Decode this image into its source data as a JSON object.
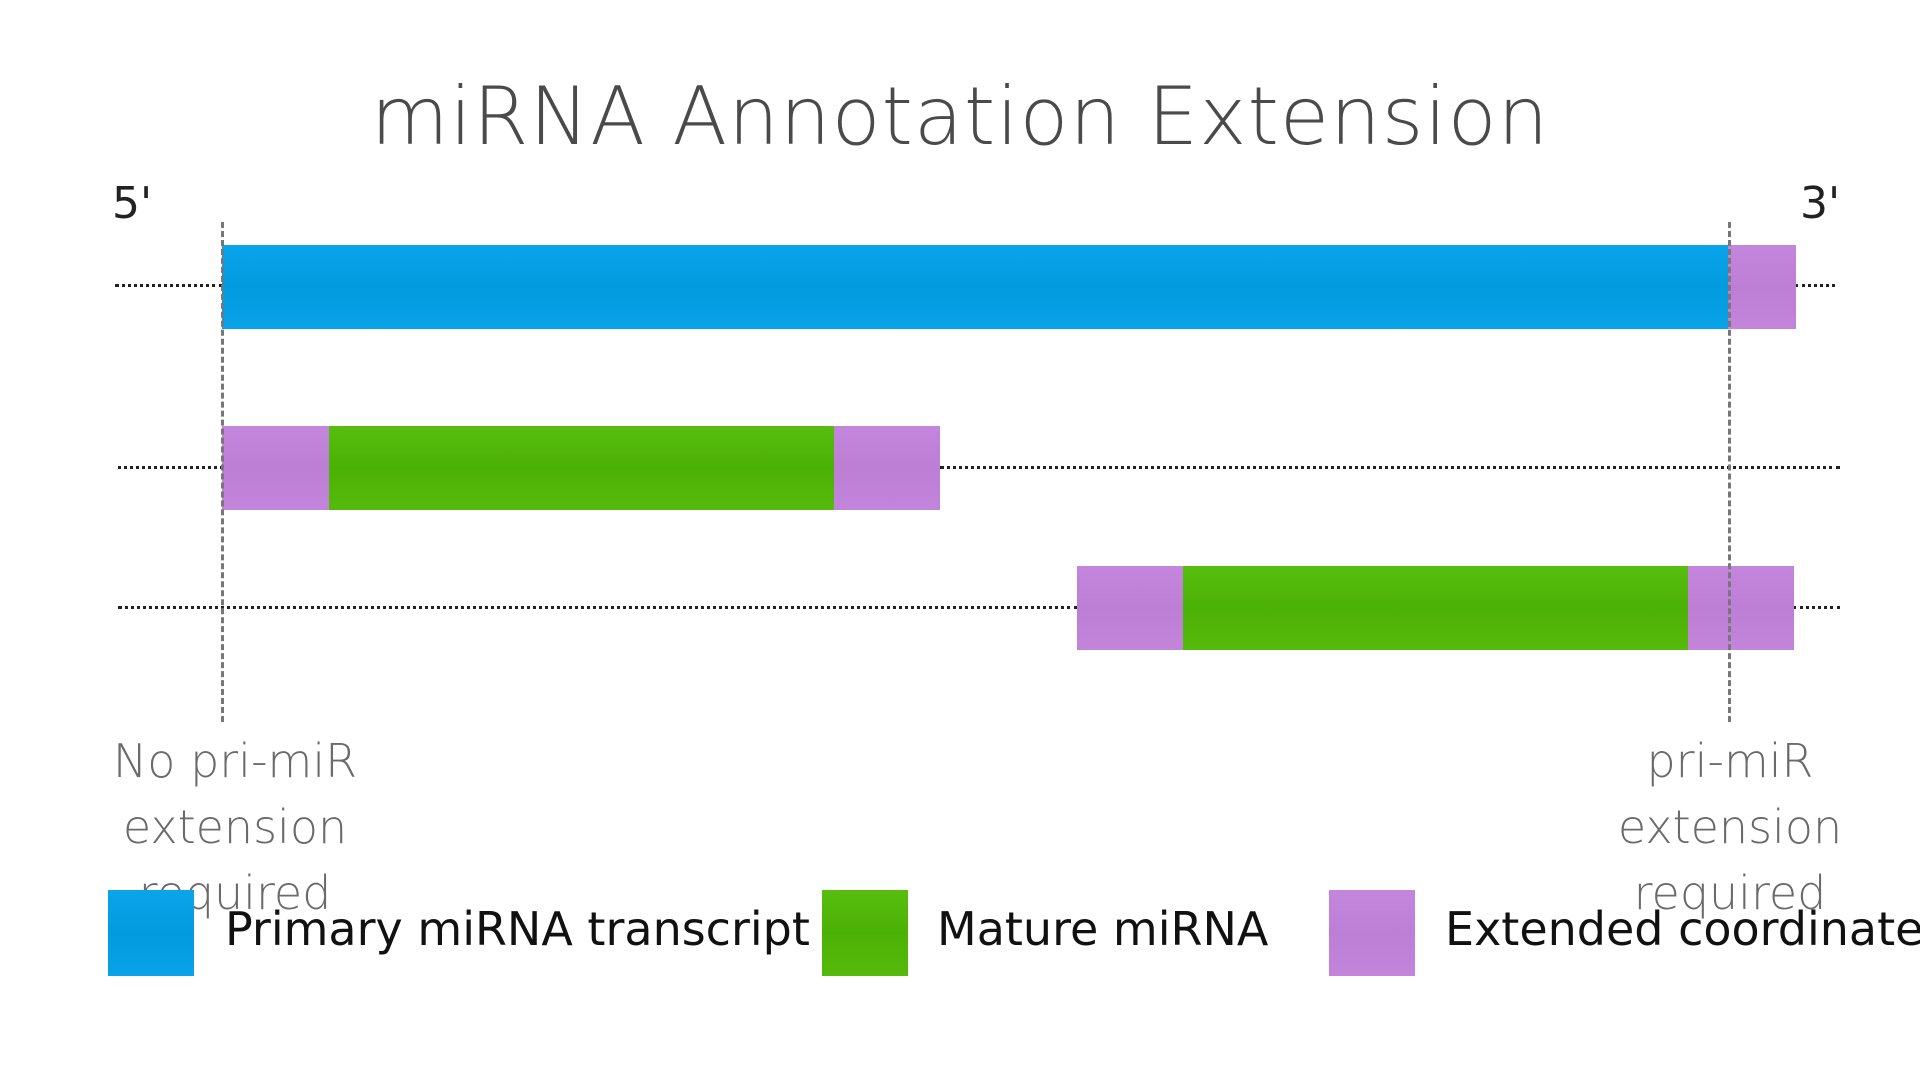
{
  "title": "miRNA Annotation Extension",
  "ends": {
    "five_prime": "5'",
    "three_prime": "3'"
  },
  "notes": {
    "left_line1": "No pri-miR extension",
    "left_line2": "required",
    "right_line1": "pri-miR extension",
    "right_line2": "required"
  },
  "legend": {
    "primary": "Primary miRNA transcript",
    "mature": "Mature miRNA",
    "extended": "Extended coordinates"
  },
  "colors": {
    "primary": "#03a0e6",
    "mature": "#50b608",
    "extended": "#c083d9"
  }
}
